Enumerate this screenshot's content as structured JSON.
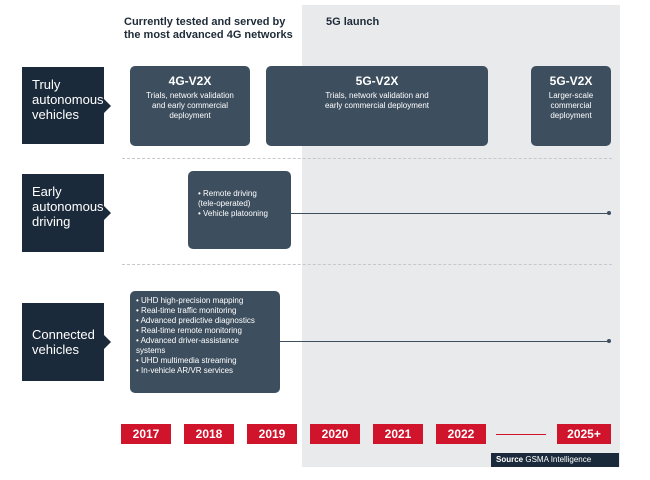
{
  "header": {
    "current_label": "Currently tested and served by\nthe most advanced 4G networks",
    "launch_label": "5G launch"
  },
  "categories": [
    {
      "label": "Truly\nautonomous\nvehicles"
    },
    {
      "label": "Early\nautonomous\ndriving"
    },
    {
      "label": "Connected\nvehicles"
    }
  ],
  "boxes": {
    "v2x_4g": {
      "title": "4G-V2X",
      "desc": "Trials, network validation\nand early commercial\ndeployment"
    },
    "v2x_5g": {
      "title": "5G-V2X",
      "desc": "Trials, network validation and\nearly commercial deployment"
    },
    "v2x_5g_large": {
      "title": "5G-V2X",
      "desc": "Larger-scale\ncommercial\ndeployment"
    },
    "early": {
      "items": [
        "Remote driving\n(tele-operated)",
        "Vehicle platooning"
      ]
    },
    "connected": {
      "items": [
        "UHD high-precision mapping",
        "Real-time traffic monitoring",
        "Advanced predictive diagnostics",
        "Real-time remote monitoring",
        "Advanced driver-assistance\nsystems",
        "UHD multimedia streaming",
        "In-vehicle AR/VR services"
      ]
    }
  },
  "years": [
    "2017",
    "2018",
    "2019",
    "2020",
    "2021",
    "2022",
    "2025+"
  ],
  "source": {
    "label": "Source",
    "value": "GSMA Intelligence"
  },
  "colors": {
    "navy": "#1b2a3a",
    "box": "#3d4e5e",
    "red": "#d0142c",
    "shade": "#e9eaec"
  }
}
